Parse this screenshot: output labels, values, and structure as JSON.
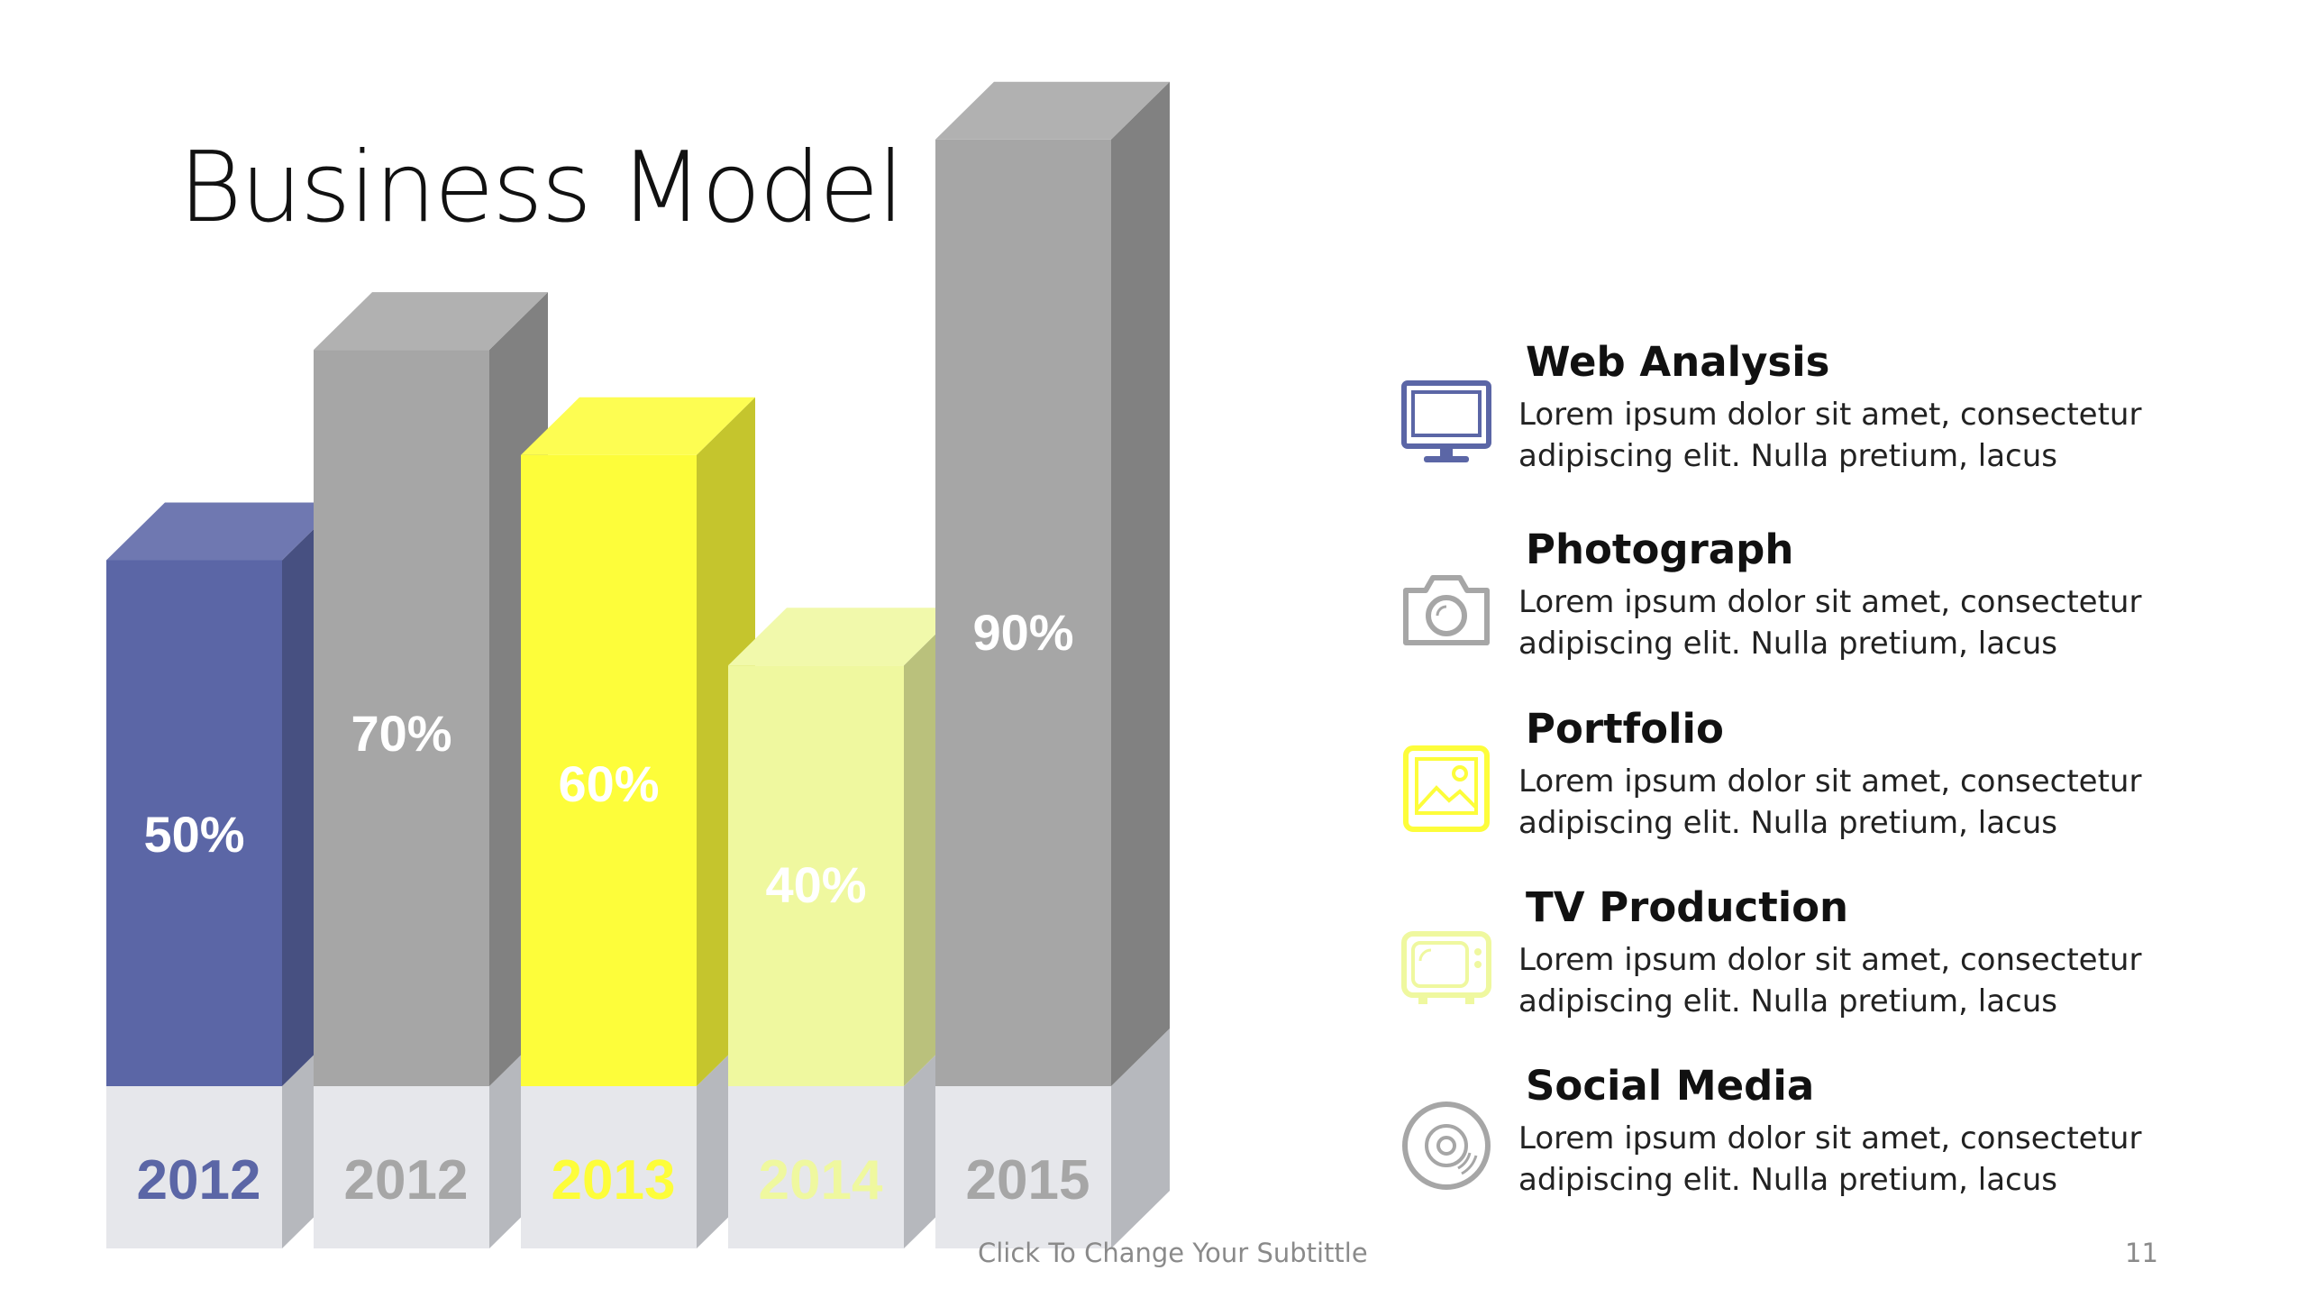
{
  "slide": {
    "title": "Business Model",
    "footer_subtitle": "Click To Change Your Subtittle",
    "page_number": "11"
  },
  "chart_data": {
    "type": "bar",
    "style": "3d",
    "title": "",
    "categories": [
      "2012",
      "2012",
      "2013",
      "2014",
      "2015"
    ],
    "values": [
      50,
      70,
      60,
      40,
      90
    ],
    "value_labels": [
      "50%",
      "70%",
      "60%",
      "40%",
      "90%"
    ],
    "ylim": [
      0,
      100
    ],
    "colors": [
      "#5b66a6",
      "#a6a6a6",
      "#fdfd3a",
      "#eff89f",
      "#a6a6a6"
    ],
    "category_label_colors": [
      "#5b66a6",
      "#a6a6a6",
      "#fdfd3a",
      "#eff89f",
      "#a6a6a6"
    ],
    "base_color": "#e6e7eb",
    "grid": false,
    "legend": "none"
  },
  "features": [
    {
      "title": "Web Analysis",
      "description": "Lorem ipsum dolor sit amet, consectetur adipiscing elit. Nulla pretium, lacus",
      "icon": "monitor-icon",
      "icon_color": "#5b66a6"
    },
    {
      "title": "Photograph",
      "description": "Lorem ipsum dolor sit amet, consectetur adipiscing elit. Nulla pretium, lacus",
      "icon": "camera-icon",
      "icon_color": "#a6a6a6"
    },
    {
      "title": "Portfolio",
      "description": "Lorem ipsum dolor sit amet, consectetur adipiscing elit. Nulla pretium, lacus",
      "icon": "picture-icon",
      "icon_color": "#fdfd3a"
    },
    {
      "title": "TV Production",
      "description": "Lorem ipsum dolor sit amet, consectetur adipiscing elit. Nulla pretium, lacus",
      "icon": "tv-icon",
      "icon_color": "#eff89f"
    },
    {
      "title": "Social Media",
      "description": "Lorem ipsum dolor sit amet, consectetur adipiscing elit. Nulla pretium, lacus",
      "icon": "disc-icon",
      "icon_color": "#a6a6a6"
    }
  ]
}
